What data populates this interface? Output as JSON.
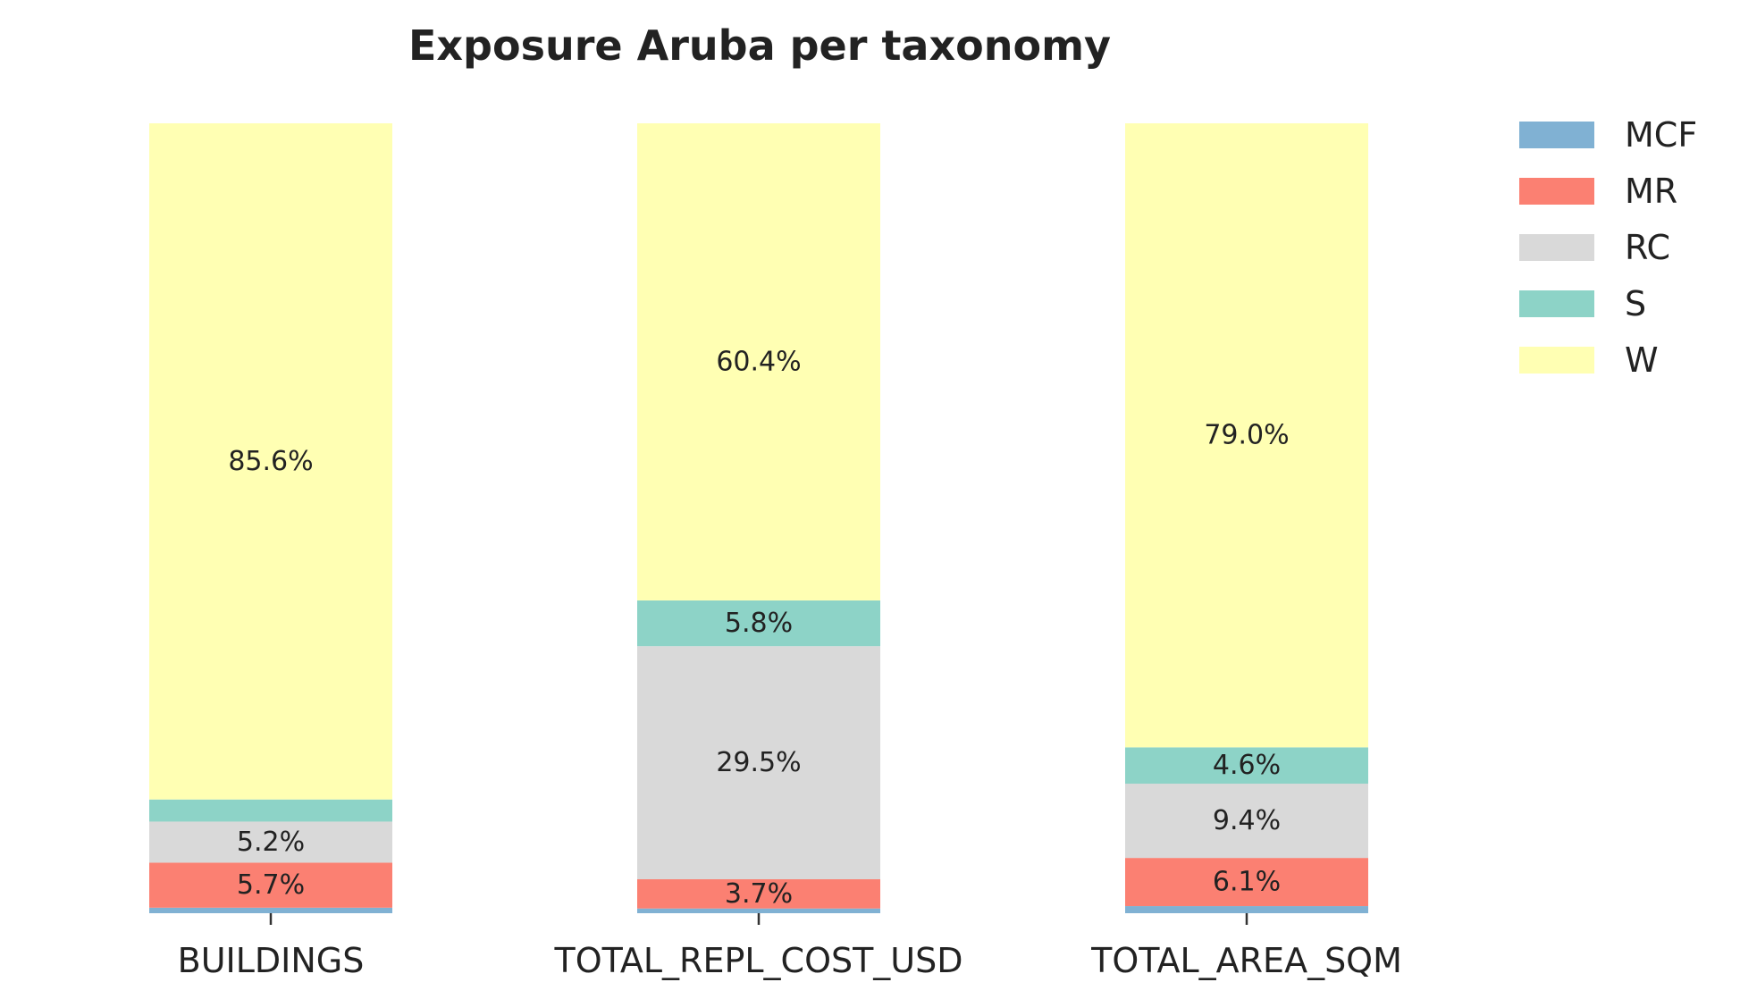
{
  "chart_data": {
    "type": "bar",
    "stacked": true,
    "percent_stacked": true,
    "title": "Exposure Aruba per taxonomy",
    "xlabel": "",
    "ylabel": "",
    "ylim": [
      0,
      100
    ],
    "grid": false,
    "legend_position": "top-right",
    "categories": [
      "BUILDINGS",
      "TOTAL_REPL_COST_USD",
      "TOTAL_AREA_SQM"
    ],
    "series": [
      {
        "name": "MCF",
        "color": "#80b1d3",
        "values": [
          0.7,
          0.6,
          0.9
        ],
        "labels": [
          "",
          "",
          ""
        ]
      },
      {
        "name": "MR",
        "color": "#fb8072",
        "values": [
          5.7,
          3.7,
          6.1
        ],
        "labels": [
          "5.7%",
          "3.7%",
          "6.1%"
        ]
      },
      {
        "name": "RC",
        "color": "#d9d9d9",
        "values": [
          5.2,
          29.5,
          9.4
        ],
        "labels": [
          "5.2%",
          "29.5%",
          "9.4%"
        ]
      },
      {
        "name": "S",
        "color": "#8dd3c7",
        "values": [
          2.8,
          5.8,
          4.6
        ],
        "labels": [
          "",
          "5.8%",
          "4.6%"
        ]
      },
      {
        "name": "W",
        "color": "#ffffb3",
        "values": [
          85.6,
          60.4,
          79.0
        ],
        "labels": [
          "85.6%",
          "60.4%",
          "79.0%"
        ]
      }
    ]
  }
}
